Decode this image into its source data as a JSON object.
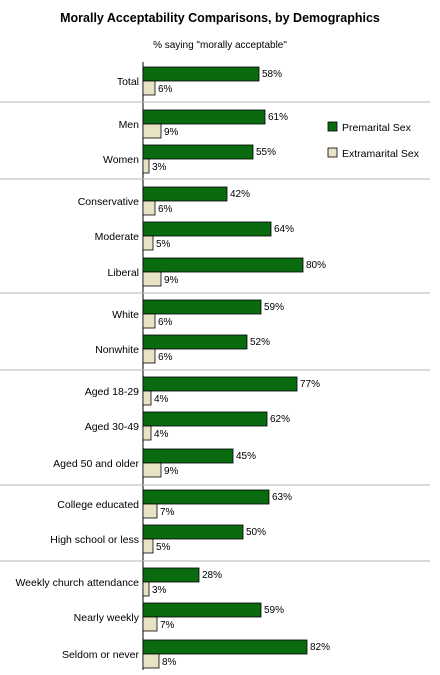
{
  "chart_data": {
    "type": "bar",
    "orientation": "horizontal",
    "title": "Morally Acceptability Comparisons, by Demographics",
    "subtitle": "% saying \"morally acceptable\"",
    "xlim": [
      0,
      100
    ],
    "grid": false,
    "legend_position": "right",
    "categories": [
      "Total",
      "Men",
      "Women",
      "Conservative",
      "Moderate",
      "Liberal",
      "White",
      "Nonwhite",
      "Aged 18-29",
      "Aged 30-49",
      "Aged 50 and older",
      "College educated",
      "High school or less",
      "Weekly church attendance",
      "Nearly weekly",
      "Seldom or never"
    ],
    "groups": [
      [
        0
      ],
      [
        1,
        2
      ],
      [
        3,
        4,
        5
      ],
      [
        6,
        7
      ],
      [
        8,
        9,
        10
      ],
      [
        11,
        12
      ],
      [
        13,
        14,
        15
      ]
    ],
    "series": [
      {
        "name": "Premarital Sex",
        "color": "#0a6a10",
        "values": [
          58,
          61,
          55,
          42,
          64,
          80,
          59,
          52,
          77,
          62,
          45,
          63,
          50,
          28,
          59,
          82
        ],
        "labels": [
          "58%",
          "61%",
          "55%",
          "42%",
          "64%",
          "80%",
          "59%",
          "52%",
          "77%",
          "62%",
          "45%",
          "63%",
          "50%",
          "28%",
          "59%",
          "82%"
        ]
      },
      {
        "name": "Extramarital Sex",
        "color": "#e8e3c4",
        "values": [
          6,
          9,
          3,
          6,
          5,
          9,
          6,
          6,
          4,
          4,
          9,
          7,
          5,
          3,
          7,
          8
        ],
        "labels": [
          "6%",
          "9%",
          "3%",
          "6%",
          "5%",
          "9%",
          "6%",
          "6%",
          "4%",
          "4%",
          "9%",
          "7%",
          "5%",
          "3%",
          "7%",
          "8%"
        ]
      }
    ]
  }
}
